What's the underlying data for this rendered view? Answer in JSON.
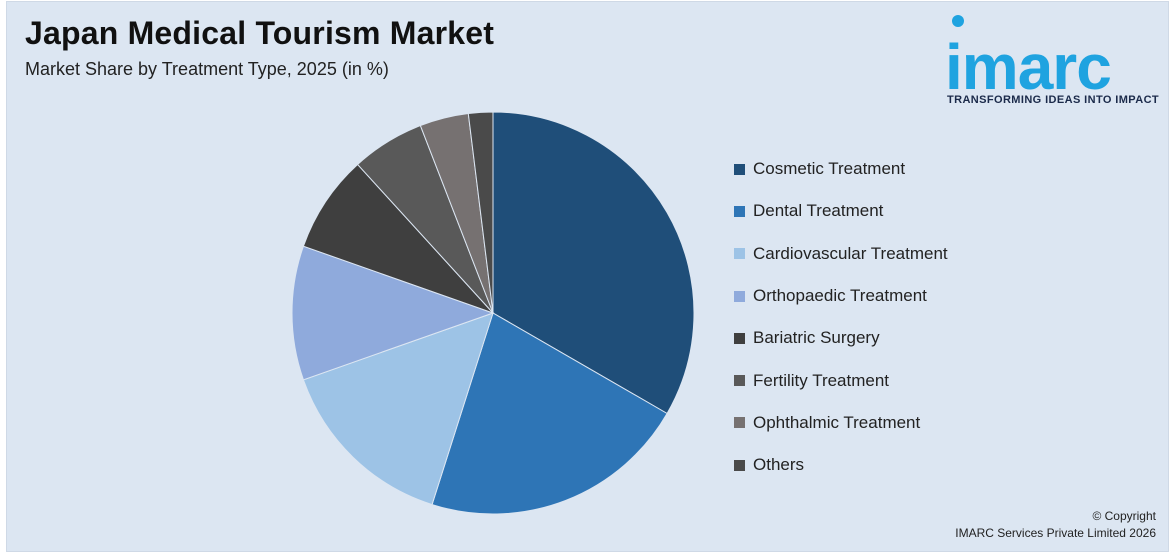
{
  "header": {
    "title": "Japan Medical Tourism Market",
    "subtitle": "Market Share by Treatment Type, 2025 (in %)"
  },
  "logo": {
    "wordmark": "imarc",
    "tagline": "TRANSFORMING IDEAS INTO IMPACT",
    "color": "#1fa3e0"
  },
  "chart_data": {
    "type": "pie",
    "title": "Japan Medical Tourism Market",
    "subtitle": "Market Share by Treatment Type, 2025 (in %)",
    "legend_position": "right",
    "start_angle_deg": 0,
    "direction": "clockwise",
    "slices": [
      {
        "label": "Cosmetic Treatment",
        "value": 34,
        "color": "#1f4e79"
      },
      {
        "label": "Dental Treatment",
        "value": 22,
        "color": "#2e75b6"
      },
      {
        "label": "Cardiovascular Treatment",
        "value": 15,
        "color": "#9dc3e6"
      },
      {
        "label": "Orthopaedic Treatment",
        "value": 11,
        "color": "#8faadc"
      },
      {
        "label": "Bariatric Surgery",
        "value": 8,
        "color": "#3f3f3f"
      },
      {
        "label": "Fertility Treatment",
        "value": 6,
        "color": "#595959"
      },
      {
        "label": "Ophthalmic Treatment",
        "value": 4,
        "color": "#767171"
      },
      {
        "label": "Others",
        "value": 2,
        "color": "#4a4a4a"
      }
    ]
  },
  "copyright": {
    "line1": "© Copyright",
    "line2": "IMARC Services Private Limited 2026"
  }
}
